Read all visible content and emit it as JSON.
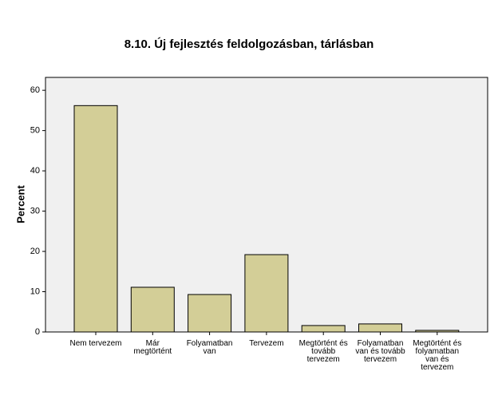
{
  "chart_data": {
    "type": "bar",
    "title": "8.10. Új fejlesztés feldolgozásban, tárlásban",
    "y_label": "Percent",
    "categories": [
      "Nem tervezem",
      "Már\nmegtörtént",
      "Folyamatban\nvan",
      "Tervezem",
      "Megtörtént és\ntovább\ntervezem",
      "Folyamatban\nvan és tovább\ntervezem",
      "Megtörtént és\nfolyamatban\nvan és\ntervezem"
    ],
    "values": [
      56.2,
      11.1,
      9.3,
      19.2,
      1.6,
      2.0,
      0.4
    ],
    "color": "#d3ce97",
    "ylim": [
      0,
      63.2
    ],
    "yticks": [
      0,
      10,
      20,
      30,
      40,
      50,
      60
    ],
    "grid": false
  }
}
